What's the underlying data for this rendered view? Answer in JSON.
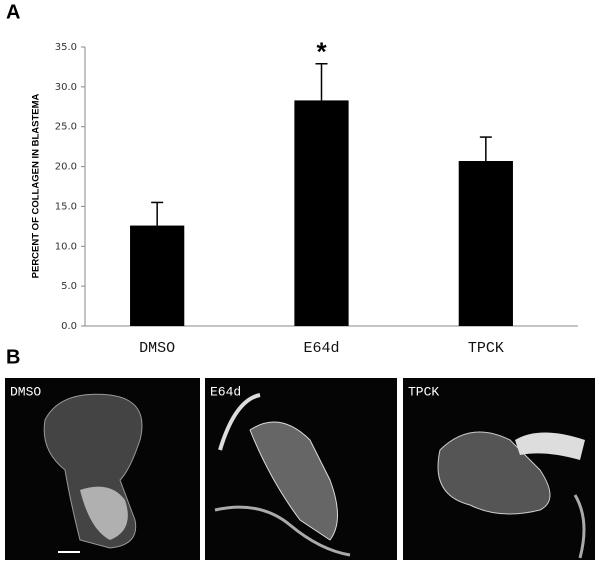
{
  "panel_labels": [
    "A",
    "B"
  ],
  "chart_data": {
    "type": "bar",
    "y_label": "PERCENT OF COLLAGEN IN BLASTEMA",
    "categories": [
      "DMSO",
      "E64d",
      "TPCK"
    ],
    "values": [
      12.6,
      28.3,
      20.7
    ],
    "errors": [
      2.9,
      4.6,
      3.0
    ],
    "color": "#000000",
    "annotation": "*",
    "ylim": [
      0,
      35
    ],
    "yticks": [
      {
        "value": 0,
        "label": "0.0"
      },
      {
        "value": 5,
        "label": "5.0"
      },
      {
        "value": 10,
        "label": "10.0"
      },
      {
        "value": 15,
        "label": "15.0"
      },
      {
        "value": 20,
        "label": "20.0"
      },
      {
        "value": 25,
        "label": "25.0"
      },
      {
        "value": 30,
        "label": "30.0"
      },
      {
        "value": 35,
        "label": "35.0"
      }
    ]
  },
  "images": [
    {
      "label": "DMSO"
    },
    {
      "label": "E64d"
    },
    {
      "label": "TPCK"
    }
  ]
}
